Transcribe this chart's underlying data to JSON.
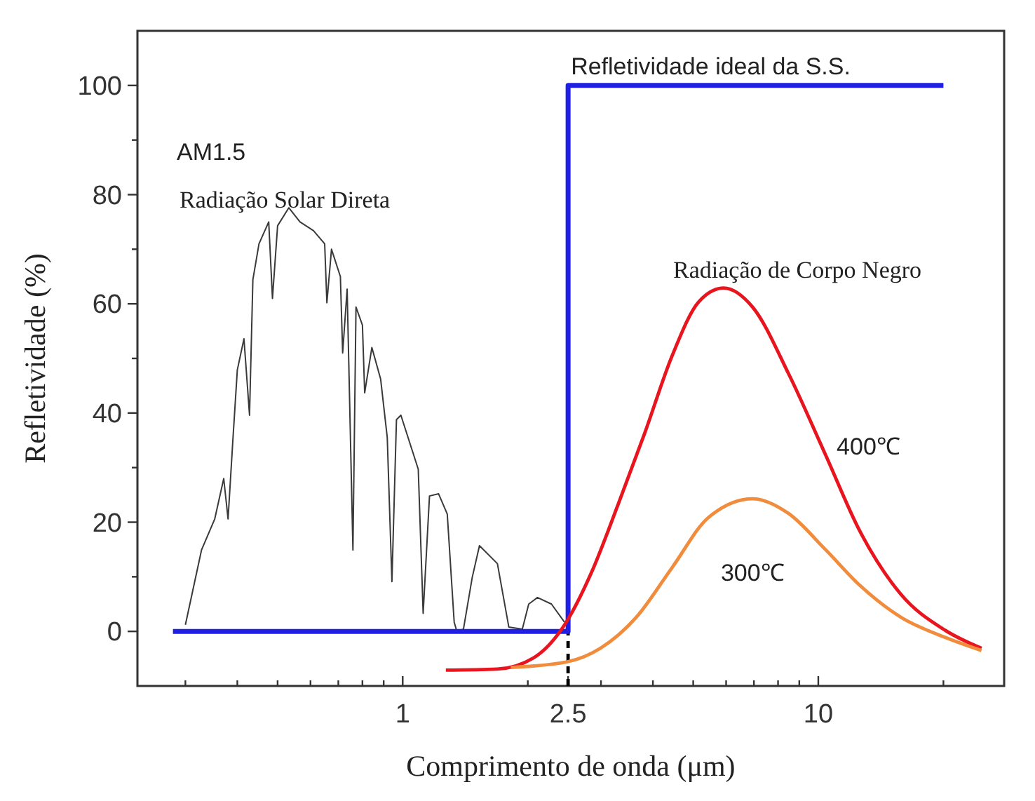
{
  "chart_data": {
    "type": "line",
    "xlabel": "Comprimento de onda (μm)",
    "ylabel": "Refletividade (%)",
    "log": "x",
    "xlim": [
      0.23,
      28
    ],
    "ylim": [
      -10,
      110
    ],
    "xticks": [
      {
        "value": 0.3,
        "label": null
      },
      {
        "value": 0.4,
        "label": null
      },
      {
        "value": 0.5,
        "label": null
      },
      {
        "value": 0.6,
        "label": null
      },
      {
        "value": 0.7,
        "label": null
      },
      {
        "value": 0.8,
        "label": null
      },
      {
        "value": 0.9,
        "label": null
      },
      1,
      {
        "value": 2,
        "label": null
      },
      2.5,
      {
        "value": 3,
        "label": null
      },
      {
        "value": 4,
        "label": null
      },
      {
        "value": 5,
        "label": null
      },
      {
        "value": 6,
        "label": null
      },
      {
        "value": 7,
        "label": null
      },
      {
        "value": 8,
        "label": null
      },
      {
        "value": 9,
        "label": null
      },
      10,
      {
        "value": 20,
        "label": null
      }
    ],
    "yticks": [
      0,
      {
        "value": 10,
        "label": null
      },
      20,
      {
        "value": 30,
        "label": null
      },
      40,
      {
        "value": 50,
        "label": null
      },
      60,
      {
        "value": 70,
        "label": null
      },
      80,
      {
        "value": 90,
        "label": null
      },
      100
    ],
    "series": [
      {
        "color": "#3a3a3a",
        "x": [
          0.3,
          0.328,
          0.353,
          0.371,
          0.38,
          0.39,
          0.4,
          0.415,
          0.428,
          0.436,
          0.451,
          0.476,
          0.486,
          0.5,
          0.532,
          0.566,
          0.61,
          0.649,
          0.657,
          0.674,
          0.708,
          0.717,
          0.735,
          0.759,
          0.772,
          0.8,
          0.81,
          0.843,
          0.885,
          0.918,
          0.942,
          0.966,
          0.99,
          1.09,
          1.12,
          1.16,
          1.22,
          1.28,
          1.33,
          1.35,
          1.4,
          1.47,
          1.53,
          1.69,
          1.8,
          1.94,
          2.01,
          2.11,
          2.28,
          2.45
        ],
        "values": [
          1.2,
          14.9,
          20.6,
          28,
          20.6,
          34.7,
          47.9,
          53.6,
          39.6,
          64.4,
          71,
          75,
          61,
          74.3,
          77.6,
          75,
          73.4,
          71,
          60.2,
          70,
          65,
          51,
          62.7,
          14.9,
          59.4,
          56.1,
          43.7,
          52,
          46.2,
          35.5,
          9.1,
          38.8,
          39.6,
          29.7,
          3.3,
          24.8,
          25.2,
          21.5,
          1.7,
          0,
          0.4,
          9.9,
          15.7,
          12.4,
          0.8,
          0.4,
          5,
          6.2,
          5,
          1.7
        ]
      },
      {
        "color": "#000000",
        "line_style": "dashed",
        "x": [
          2.5,
          2.5
        ],
        "values": [
          -10,
          0
        ]
      },
      {
        "name": "Refletividade ideal da S.S.",
        "color": "#1f1fe6",
        "x": [
          0.28,
          2.5,
          2.5,
          20
        ],
        "values": [
          0,
          0,
          100,
          100
        ]
      },
      {
        "name": "400℃",
        "color": "#e8141e",
        "x": [
          1.27,
          1.69,
          2.06,
          2.48,
          2.85,
          3.3,
          3.83,
          4.45,
          5.16,
          5.92,
          6.95,
          8.48,
          10.4,
          12.6,
          15.8,
          20.2,
          24.7
        ],
        "values": [
          -7.1,
          -6.9,
          -4.9,
          1.8,
          10.9,
          23.3,
          36.5,
          50.5,
          60.4,
          62.9,
          59.4,
          47.2,
          32.4,
          18.3,
          6.8,
          0.2,
          -3.1
        ]
      },
      {
        "name": "300℃",
        "color": "#f08c3c",
        "x": [
          1.82,
          2.48,
          2.99,
          3.65,
          4.45,
          5.43,
          6.95,
          8.48,
          10.4,
          12.6,
          15.8,
          20.2,
          24.7
        ],
        "values": [
          -6.6,
          -5.6,
          -3.1,
          2.6,
          11.7,
          20.8,
          24.3,
          21.6,
          15,
          8.4,
          2.6,
          -1.1,
          -3.5
        ]
      }
    ],
    "annotations": [
      "AM1.5",
      "Radiação Solar Direta",
      "Radiação de Corpo Negro"
    ]
  }
}
